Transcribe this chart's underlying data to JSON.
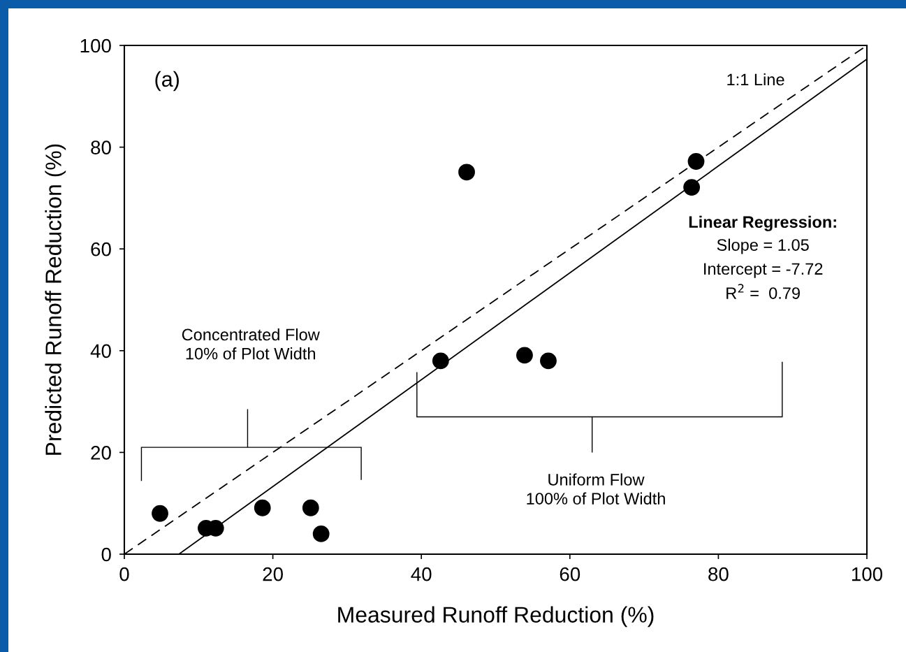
{
  "chart_data": {
    "type": "scatter",
    "xlabel": "Measured Runoff Reduction (%)",
    "ylabel": "Predicted Runoff Reduction (%)",
    "xlim": [
      0,
      100
    ],
    "ylim": [
      0,
      100
    ],
    "xticks": [
      0,
      20,
      40,
      60,
      80,
      100
    ],
    "yticks": [
      0,
      20,
      40,
      60,
      80,
      100
    ],
    "grid": false,
    "legend": false,
    "marker": "circle",
    "series": [
      {
        "color": "#000000",
        "x": [
          4.8,
          11.0,
          12.3,
          18.6,
          25.1,
          26.5,
          42.6,
          46.1,
          53.9,
          57.1,
          76.4,
          77.0
        ],
        "values": [
          8.0,
          5.1,
          5.1,
          9.1,
          9.1,
          4.0,
          38.0,
          75.1,
          39.1,
          38.0,
          72.1,
          77.2
        ]
      },
      {
        "type": "line",
        "color": "#000000",
        "line_style": "dashed",
        "marker": "none",
        "x": [
          0,
          100
        ],
        "values": [
          0,
          100
        ]
      },
      {
        "type": "line",
        "color": "#000000",
        "line_style": "solid",
        "marker": "none",
        "x": [
          7.35,
          100
        ],
        "values": [
          0,
          97.3
        ]
      }
    ],
    "annotations": [
      "(a)",
      "1:1 Line",
      "Linear Regression:",
      "Slope = 1.05",
      "Intercept = -7.72",
      "R$^{2}$ =  0.79",
      "Concentrated Flow\n10% of Plot Width",
      "Uniform Flow\n100% of Plot Width"
    ]
  }
}
